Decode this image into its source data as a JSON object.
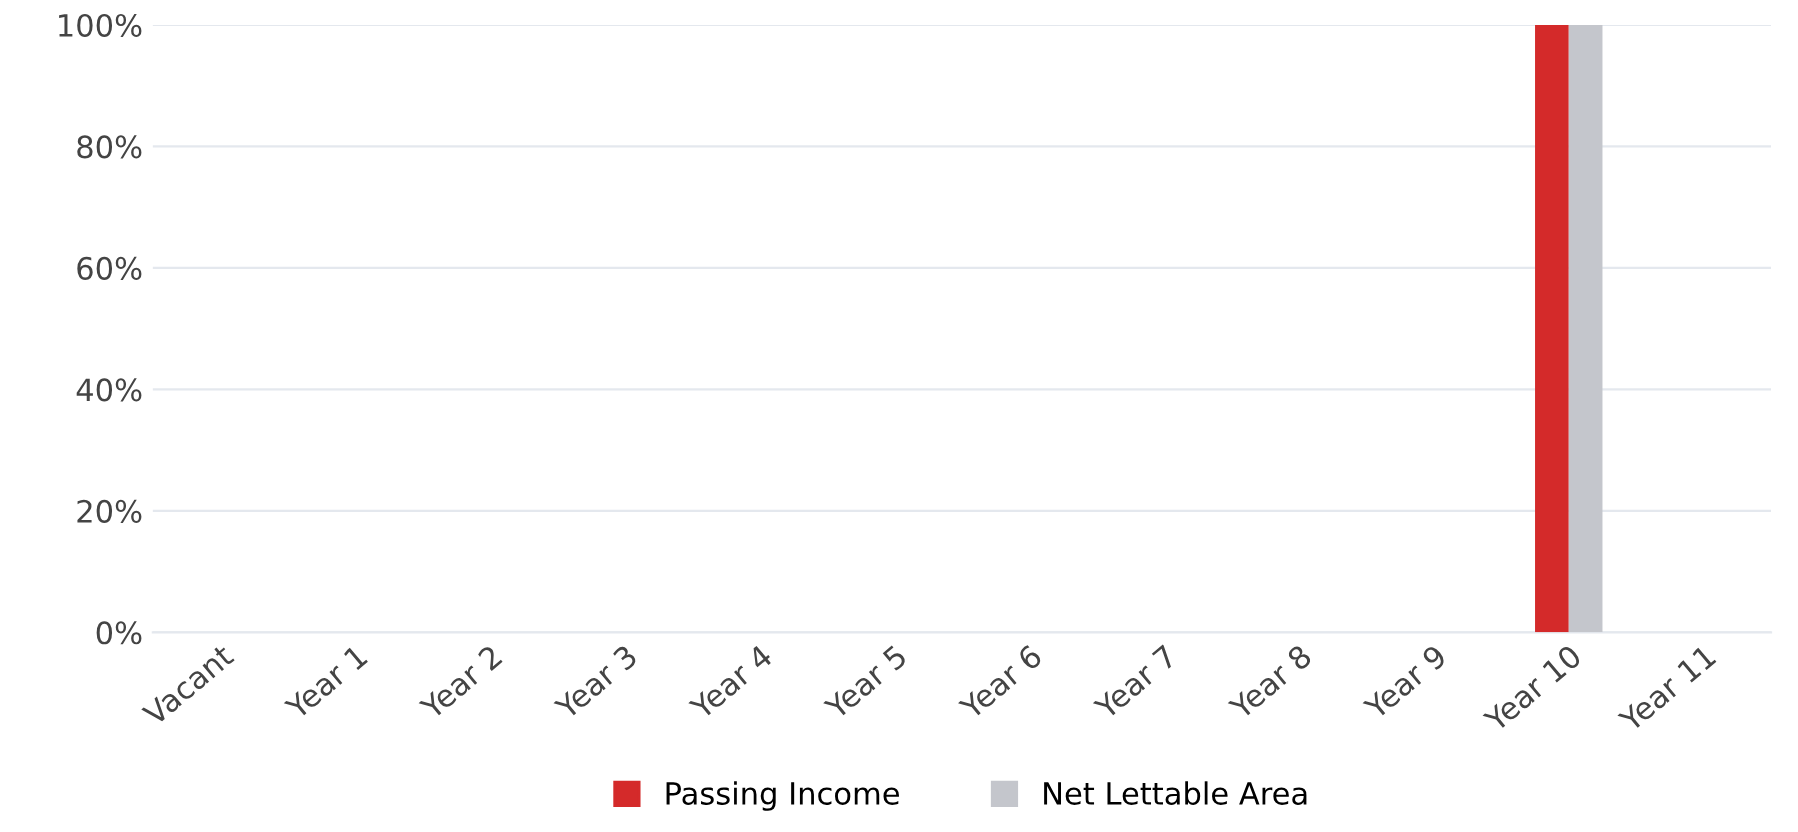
{
  "chart_data": {
    "type": "bar",
    "categories": [
      "Vacant",
      "Year 1",
      "Year 2",
      "Year 3",
      "Year 4",
      "Year 5",
      "Year 6",
      "Year 7",
      "Year 8",
      "Year 9",
      "Year 10",
      "Year 11"
    ],
    "series": [
      {
        "name": "Passing Income",
        "color": "#d42a2a",
        "values": [
          0,
          0,
          0,
          0,
          0,
          0,
          0,
          0,
          0,
          0,
          100,
          0
        ]
      },
      {
        "name": "Net Lettable Area",
        "color": "#c4c6cc",
        "values": [
          0,
          0,
          0,
          0,
          0,
          0,
          0,
          0,
          0,
          0,
          100,
          0
        ]
      }
    ],
    "ylim": [
      0,
      100
    ],
    "yticks": [
      {
        "value": 0,
        "label": "0%"
      },
      {
        "value": 20,
        "label": "20%"
      },
      {
        "value": 40,
        "label": "40%"
      },
      {
        "value": 60,
        "label": "60%"
      },
      {
        "value": 80,
        "label": "80%"
      },
      {
        "value": 100,
        "label": "100%"
      }
    ],
    "grid": "y",
    "legend": "bottom"
  }
}
